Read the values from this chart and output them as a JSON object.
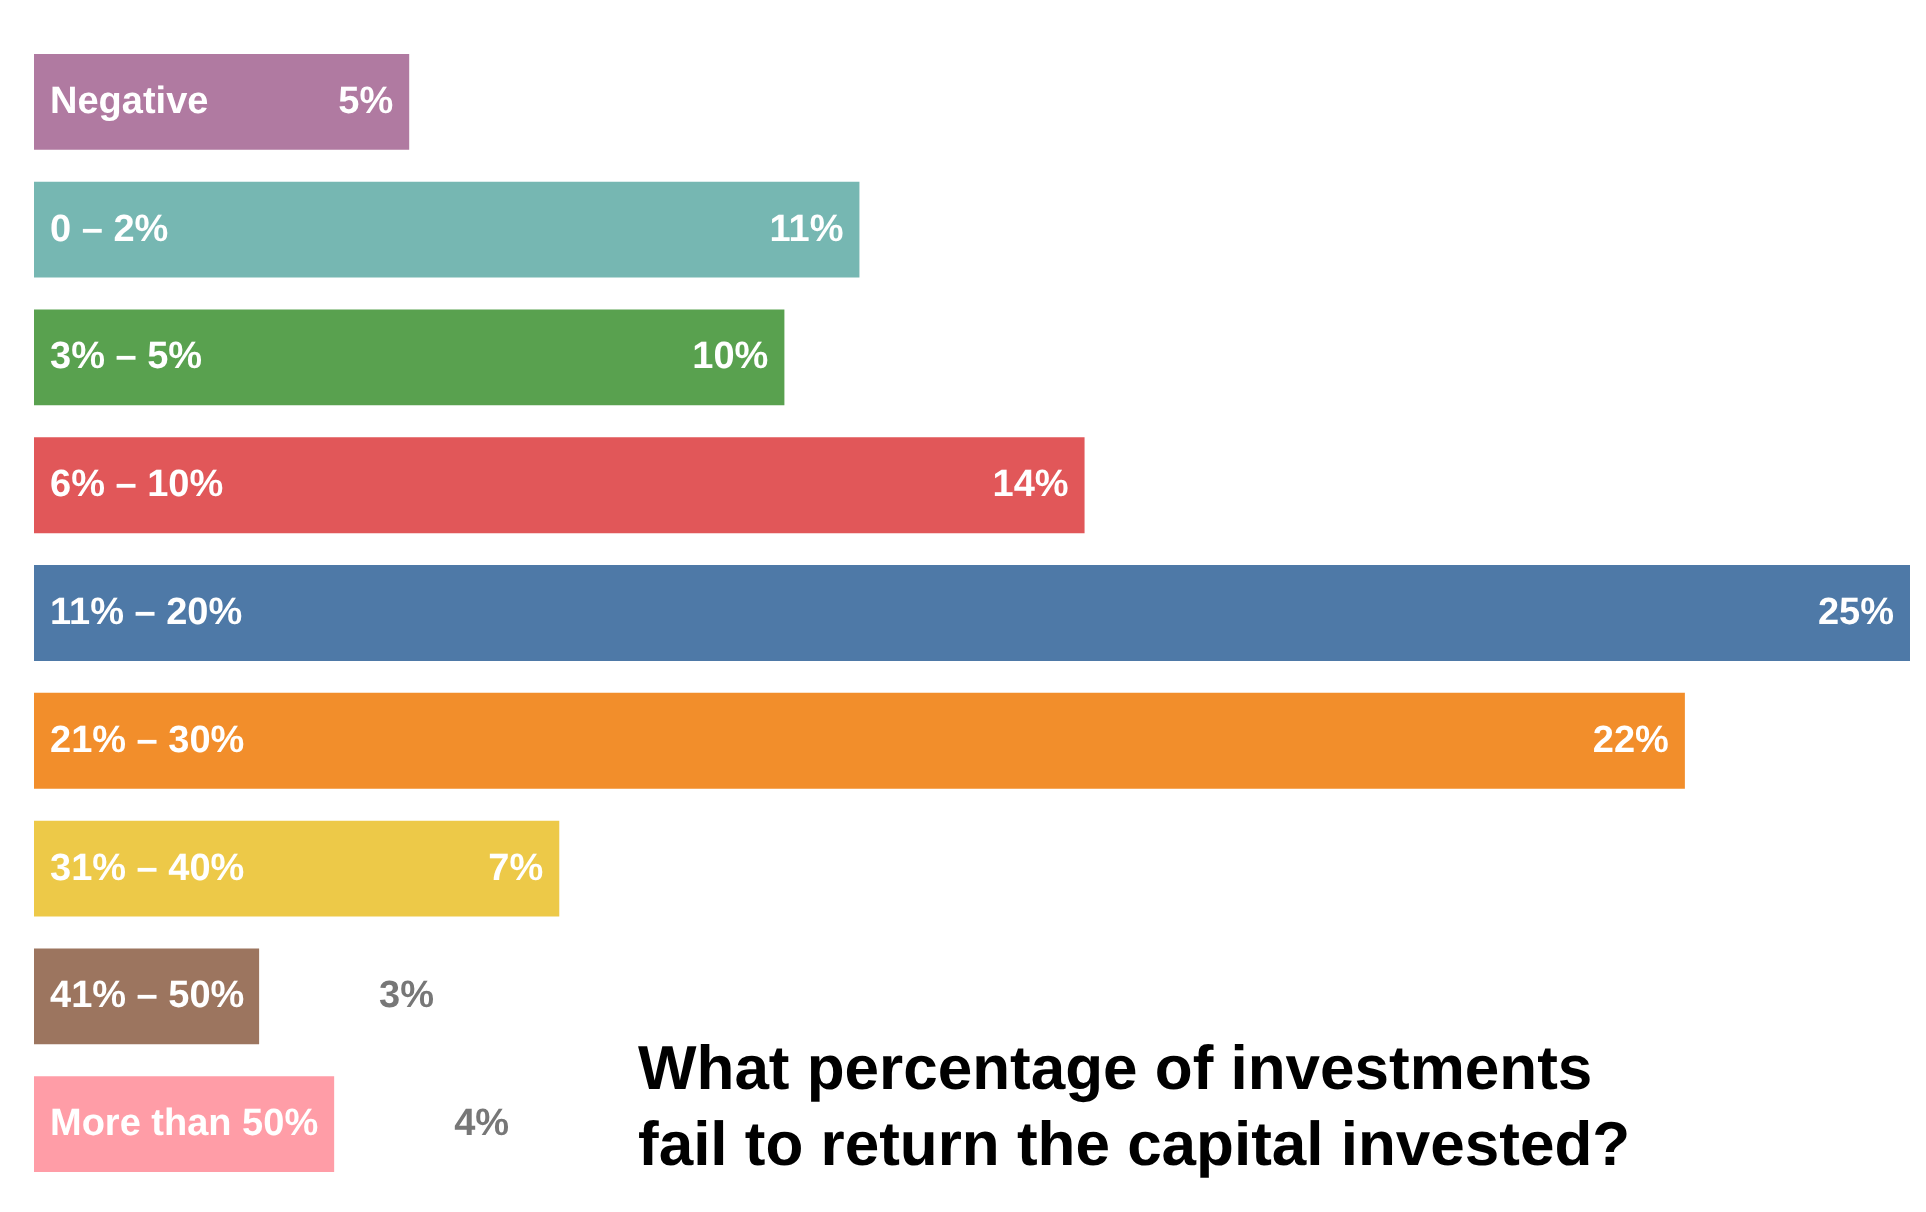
{
  "chart_data": {
    "type": "bar",
    "orientation": "horizontal",
    "title": "What percentage of investments\nfail to return the capital invested?",
    "categories": [
      "Negative",
      "0 – 2%",
      "3% – 5%",
      "6% – 10%",
      "11% – 20%",
      "21% – 30%",
      "31% – 40%",
      "41% – 50%",
      "More than 50%"
    ],
    "values": [
      5,
      11,
      10,
      14,
      25,
      22,
      7,
      3,
      4
    ],
    "value_labels": [
      "5%",
      "11%",
      "10%",
      "14%",
      "25%",
      "22%",
      "7%",
      "3%",
      "4%"
    ],
    "colors": [
      "#b07aa1",
      "#76b7b2",
      "#59a14f",
      "#e15759",
      "#4e79a7",
      "#f28e2b",
      "#edc948",
      "#9c755f",
      "#ff9da7"
    ]
  }
}
